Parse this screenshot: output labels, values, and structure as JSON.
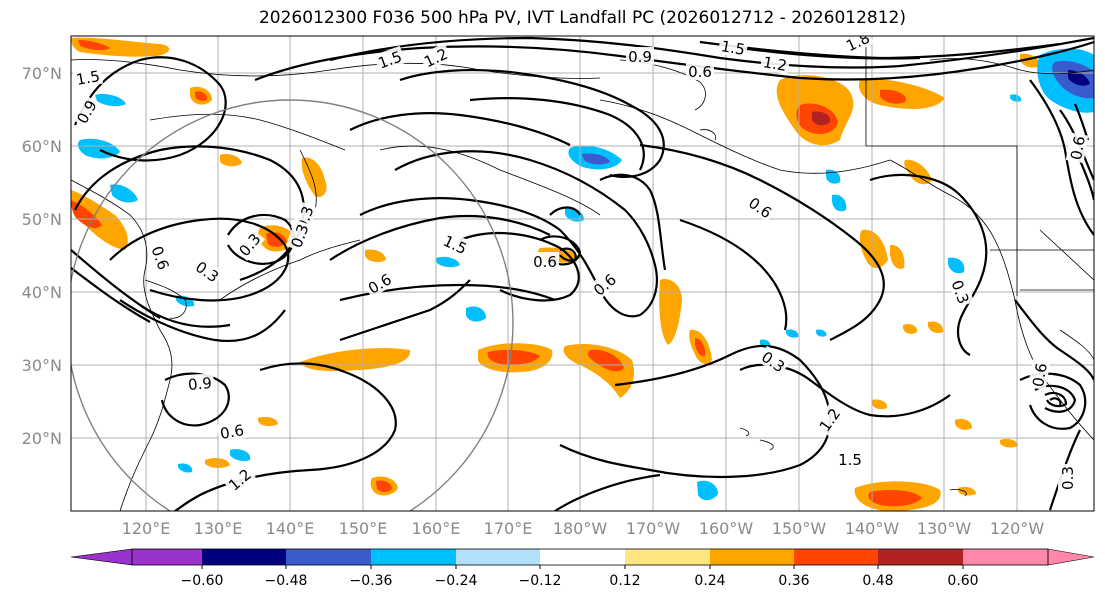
{
  "title": "2026012300 F036 500 hPa PV, IVT Landfall PC (2026012712 - 2026012812)",
  "lat_labels": [
    "70°N",
    "60°N",
    "50°N",
    "40°N",
    "30°N",
    "20°N"
  ],
  "lon_labels": [
    "120°E",
    "130°E",
    "140°E",
    "150°E",
    "160°E",
    "170°E",
    "180°W",
    "170°W",
    "160°W",
    "150°W",
    "140°W",
    "130°W",
    "120°W"
  ],
  "colorbar": {
    "ticks": [
      "−0.60",
      "−0.48",
      "−0.36",
      "−0.24",
      "−0.12",
      "0.12",
      "0.24",
      "0.36",
      "0.48",
      "0.60"
    ],
    "colors": [
      "#9933cc",
      "#000080",
      "#3a5bcc",
      "#00bfff",
      "#b0e0fa",
      "#ffffff",
      "#ffe680",
      "#ffa500",
      "#ff4500",
      "#b22222",
      "#ff88aa",
      "#ff88aa"
    ]
  },
  "contour_labels": [
    "1.5",
    "1.2",
    "0.9",
    "0.6",
    "1.5",
    "1.8",
    "1.2",
    "1.5",
    "0.9",
    "0.6",
    "0.3",
    "1.2",
    "1.5",
    "1.5",
    "0.6",
    "0.6",
    "0.3",
    "0.3",
    "0.3",
    "0.6",
    "0.3",
    "0.9",
    "0.6",
    "1.2",
    "0.6",
    "0.3",
    "0.6",
    "0.3",
    "0.6"
  ],
  "colors": {
    "contour": "#000000",
    "coast": "#000000",
    "grid": "#b0b0b0",
    "circle": "#808080",
    "lat_lon_labels": "#8a8a8a"
  }
}
